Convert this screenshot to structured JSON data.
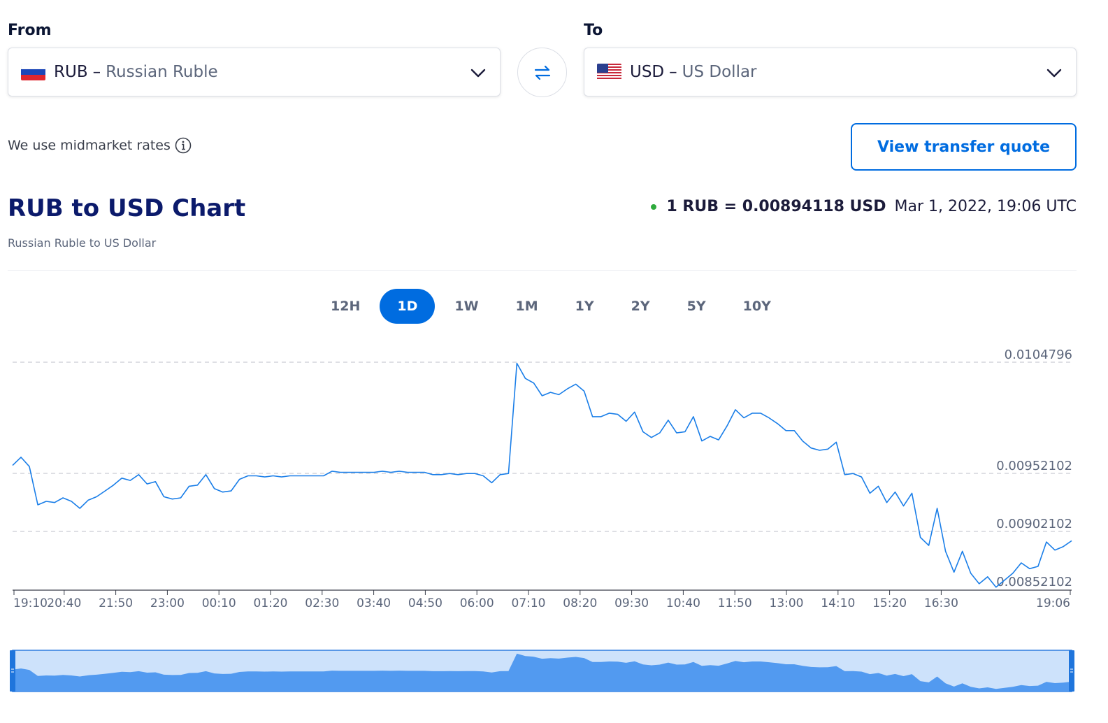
{
  "from": {
    "label": "From",
    "code": "RUB",
    "name": "Russian Ruble"
  },
  "to": {
    "label": "To",
    "code": "USD",
    "name": "US Dollar"
  },
  "dash": "–",
  "midmarket_text": "We use midmarket rates",
  "quote_button": "View transfer quote",
  "chart_header": {
    "title": "RUB to USD Chart",
    "subtitle": "Russian Ruble to US Dollar",
    "rate": "1 RUB = 0.00894118 USD",
    "timestamp": "Mar 1, 2022, 19:06 UTC"
  },
  "tabs": [
    "12H",
    "1D",
    "1W",
    "1M",
    "1Y",
    "2Y",
    "5Y",
    "10Y"
  ],
  "active_tab": "1D",
  "colors": {
    "accent": "#006ce0",
    "line": "#1a7ee8",
    "navigator_fill": "#529af0",
    "navigator_bg": "#cde2fb",
    "live_dot": "#2eaa3c"
  },
  "chart_data": {
    "type": "line",
    "x_ticks": [
      "19:10",
      "20:40",
      "21:50",
      "23:00",
      "00:10",
      "01:20",
      "02:30",
      "03:40",
      "04:50",
      "06:00",
      "07:10",
      "08:20",
      "09:30",
      "10:40",
      "11:50",
      "13:00",
      "14:10",
      "15:20",
      "16:30",
      "19:06"
    ],
    "y_ticks": [
      0.00852102,
      0.00902102,
      0.00952102,
      0.0104796
    ],
    "y_tick_labels": [
      "0.00852102",
      "0.00902102",
      "0.00952102",
      "0.0104796"
    ],
    "ylim": [
      0.00852102,
      0.0104796
    ],
    "grid": "dashed horizontal",
    "series": [
      {
        "values": [
          0.00959,
          0.00966,
          0.00958,
          0.00925,
          0.00928,
          0.00927,
          0.00931,
          0.00928,
          0.00922,
          0.00929,
          0.00932,
          0.00937,
          0.00942,
          0.00948,
          0.00946,
          0.00951,
          0.00943,
          0.00945,
          0.00932,
          0.0093,
          0.00931,
          0.00941,
          0.00942,
          0.00951,
          0.00939,
          0.00936,
          0.00937,
          0.00947,
          0.0095,
          0.0095,
          0.00949,
          0.0095,
          0.00949,
          0.0095,
          0.0095,
          0.0095,
          0.0095,
          0.0095,
          0.00954,
          0.00953,
          0.00953,
          0.00953,
          0.00953,
          0.00953,
          0.00954,
          0.00953,
          0.00954,
          0.00953,
          0.00953,
          0.00953,
          0.00951,
          0.00951,
          0.00952,
          0.00951,
          0.00952,
          0.00952,
          0.0095,
          0.00944,
          0.00951,
          0.00952,
          0.01047,
          0.01034,
          0.0103,
          0.01019,
          0.01022,
          0.0102,
          0.01025,
          0.01029,
          0.01023,
          0.01001,
          0.01001,
          0.01004,
          0.01003,
          0.00997,
          0.01005,
          0.00988,
          0.00983,
          0.00987,
          0.00998,
          0.00987,
          0.00988,
          0.01001,
          0.0098,
          0.00984,
          0.00981,
          0.00993,
          0.01007,
          0.01,
          0.01004,
          0.01004,
          0.01,
          0.00995,
          0.00989,
          0.00989,
          0.0098,
          0.00974,
          0.00972,
          0.00973,
          0.00979,
          0.00951,
          0.00952,
          0.00949,
          0.00935,
          0.00941,
          0.00927,
          0.00936,
          0.00924,
          0.00935,
          0.00897,
          0.0089,
          0.00922,
          0.00885,
          0.00867,
          0.00885,
          0.00866,
          0.00857,
          0.00863,
          0.00854,
          0.0086,
          0.00866,
          0.00875,
          0.0087,
          0.00872,
          0.00893,
          0.00886,
          0.00889,
          0.00894
        ]
      }
    ],
    "navigator": {
      "visible_range": "full"
    }
  }
}
